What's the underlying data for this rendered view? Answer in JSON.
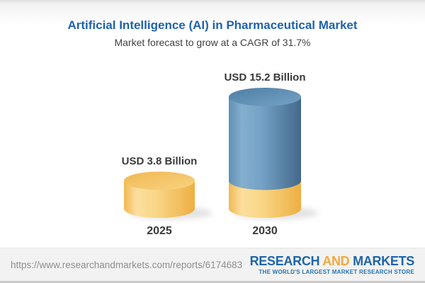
{
  "header": {
    "title": "Artificial Intelligence (AI) in Pharmaceutical Market",
    "subtitle": "Market forecast to grow at a CAGR of 31.7%"
  },
  "chart_data": {
    "type": "bar",
    "variant": "3d-cylinder-infographic",
    "title": "Artificial Intelligence (AI) in Pharmaceutical Market",
    "subtitle": "Market forecast to grow at a CAGR of 31.7%",
    "categories": [
      "2025",
      "2030"
    ],
    "values": [
      3.8,
      15.2
    ],
    "value_labels": [
      "USD 3.8 Billion",
      "USD 15.2 Billion"
    ],
    "unit": "USD Billion",
    "cagr_percent": 31.7,
    "base_segment_value": 3.8,
    "grid": false,
    "legend": "none",
    "axes_visible": false,
    "bar_colors": [
      "#F6CC74",
      "#6496BC"
    ],
    "base_segment_color": "#F6CC74"
  },
  "colors": {
    "title_blue": "#1E63AE",
    "label_text": "#3A3A3A",
    "yellow_body_light": "#FBDF9E",
    "yellow_body_dark": "#EDAF43",
    "blue_body_light": "#85AECE",
    "blue_body_dark": "#44688A",
    "footer_bg": "#F2F2F2",
    "logo_blue": "#1F66A8",
    "logo_orange": "#F2A93B"
  },
  "footer": {
    "url": "https://www.researchandmarkets.com/reports/6174683",
    "logo": {
      "part1": "RESEARCH",
      "part2": "AND",
      "part3": "MARKETS",
      "tagline": "THE WORLD'S LARGEST MARKET RESEARCH STORE"
    }
  }
}
